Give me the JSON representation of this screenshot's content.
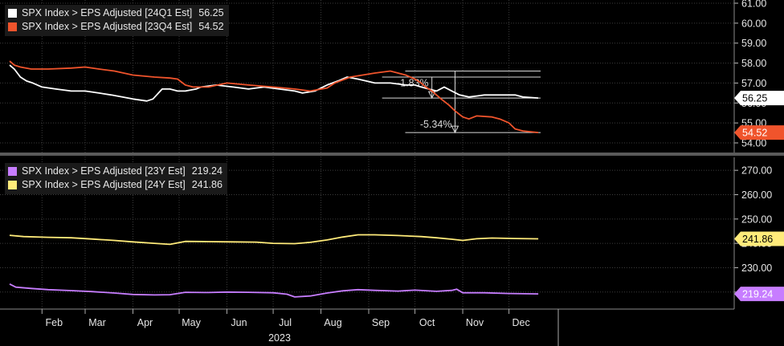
{
  "chart_data": [
    {
      "type": "line",
      "legend_position": "top-left",
      "ylim": [
        54.0,
        61.0
      ],
      "y_ticks": [
        "61.00",
        "60.00",
        "59.00",
        "58.00",
        "57.00",
        "56.00",
        "55.00",
        "54.00"
      ],
      "series": [
        {
          "name": "SPX Index > EPS Adjusted [24Q1 Est]",
          "last_label": "56.25",
          "color": "#ffffff",
          "x": [
            "2023-01-11",
            "2023-01-14",
            "2023-01-18",
            "2023-01-22",
            "2023-01-26",
            "2023-02-01",
            "2023-02-10",
            "2023-02-20",
            "2023-03-01",
            "2023-03-10",
            "2023-03-18",
            "2023-03-25",
            "2023-04-01",
            "2023-04-10",
            "2023-04-14",
            "2023-04-20",
            "2023-04-25",
            "2023-04-30",
            "2023-05-05",
            "2023-05-12",
            "2023-05-15",
            "2023-05-25",
            "2023-06-05",
            "2023-06-15",
            "2023-06-25",
            "2023-07-05",
            "2023-07-15",
            "2023-07-20",
            "2023-07-28",
            "2023-08-05",
            "2023-08-12",
            "2023-08-18",
            "2023-08-25",
            "2023-09-05",
            "2023-09-15",
            "2023-09-25",
            "2023-10-01",
            "2023-10-05",
            "2023-10-10",
            "2023-10-15",
            "2023-10-20",
            "2023-10-25",
            "2023-10-30",
            "2023-11-05",
            "2023-11-10",
            "2023-11-15",
            "2023-11-25",
            "2023-12-05",
            "2023-12-10",
            "2023-12-20"
          ],
          "values": [
            57.9,
            57.7,
            57.3,
            57.1,
            57.0,
            56.8,
            56.7,
            56.6,
            56.6,
            56.5,
            56.4,
            56.3,
            56.2,
            56.1,
            56.2,
            56.7,
            56.7,
            56.6,
            56.6,
            56.7,
            56.8,
            56.9,
            56.8,
            56.7,
            56.8,
            56.7,
            56.6,
            56.5,
            56.6,
            56.9,
            57.1,
            57.3,
            57.2,
            57.0,
            57.0,
            56.9,
            56.9,
            56.8,
            56.7,
            56.6,
            56.8,
            56.6,
            56.4,
            56.3,
            56.35,
            56.4,
            56.4,
            56.4,
            56.3,
            56.25
          ]
        },
        {
          "name": "SPX Index > EPS Adjusted [23Q4 Est]",
          "last_label": "54.52",
          "color": "#f0542c",
          "x": [
            "2023-01-11",
            "2023-01-14",
            "2023-01-18",
            "2023-01-25",
            "2023-02-05",
            "2023-02-20",
            "2023-03-01",
            "2023-03-10",
            "2023-03-20",
            "2023-04-01",
            "2023-04-15",
            "2023-04-25",
            "2023-04-30",
            "2023-05-05",
            "2023-05-10",
            "2023-05-20",
            "2023-06-01",
            "2023-06-15",
            "2023-07-01",
            "2023-07-15",
            "2023-07-25",
            "2023-08-05",
            "2023-08-10",
            "2023-08-20",
            "2023-09-05",
            "2023-09-15",
            "2023-09-25",
            "2023-10-01",
            "2023-10-05",
            "2023-10-08",
            "2023-10-12",
            "2023-10-18",
            "2023-10-23",
            "2023-10-27",
            "2023-11-01",
            "2023-11-05",
            "2023-11-10",
            "2023-11-20",
            "2023-11-25",
            "2023-12-01",
            "2023-12-05",
            "2023-12-10",
            "2023-12-20"
          ],
          "values": [
            58.1,
            57.9,
            57.8,
            57.7,
            57.7,
            57.75,
            57.8,
            57.7,
            57.6,
            57.4,
            57.3,
            57.25,
            57.2,
            56.9,
            56.8,
            56.8,
            57.0,
            56.9,
            56.8,
            56.7,
            56.6,
            56.75,
            57.0,
            57.3,
            57.5,
            57.6,
            57.4,
            57.2,
            57.0,
            56.8,
            56.6,
            56.2,
            55.9,
            55.6,
            55.3,
            55.2,
            55.35,
            55.3,
            55.2,
            55.0,
            54.7,
            54.6,
            54.52
          ]
        }
      ],
      "annotations": [
        {
          "text": "-1.83%",
          "x": "2023-10-12",
          "y": 56.6,
          "from": 57.3,
          "to": 56.25
        },
        {
          "text": "-5.34%",
          "x": "2023-10-27",
          "y": 54.52,
          "from": 57.6,
          "to": 54.52
        }
      ]
    },
    {
      "type": "line",
      "legend_position": "top-left",
      "ylim": [
        214.0,
        275.0
      ],
      "y_ticks": [
        "270.00",
        "260.00",
        "250.00",
        "240.00",
        "230.00",
        "220.00"
      ],
      "series": [
        {
          "name": "SPX Index > EPS Adjusted [23Y Est]",
          "last_label": "219.24",
          "color": "#c77dff",
          "x": [
            "2023-01-11",
            "2023-01-15",
            "2023-01-25",
            "2023-02-05",
            "2023-02-20",
            "2023-03-05",
            "2023-03-20",
            "2023-04-01",
            "2023-04-15",
            "2023-04-25",
            "2023-05-05",
            "2023-05-20",
            "2023-06-01",
            "2023-06-15",
            "2023-07-01",
            "2023-07-10",
            "2023-07-15",
            "2023-07-25",
            "2023-08-05",
            "2023-08-15",
            "2023-08-25",
            "2023-09-05",
            "2023-09-20",
            "2023-10-01",
            "2023-10-15",
            "2023-10-25",
            "2023-10-28",
            "2023-11-01",
            "2023-11-15",
            "2023-12-01",
            "2023-12-20"
          ],
          "values": [
            223.3,
            222.0,
            221.5,
            221.0,
            220.6,
            220.2,
            219.6,
            219.0,
            218.8,
            218.9,
            219.9,
            219.8,
            220.0,
            219.9,
            219.7,
            219.1,
            218.0,
            218.4,
            219.6,
            220.5,
            221.0,
            220.7,
            220.4,
            220.8,
            220.3,
            220.7,
            221.2,
            219.7,
            219.7,
            219.4,
            219.24
          ]
        },
        {
          "name": "SPX Index > EPS Adjusted [24Y Est]",
          "last_label": "241.86",
          "color": "#ffeb7a",
          "x": [
            "2023-01-11",
            "2023-01-20",
            "2023-02-05",
            "2023-02-20",
            "2023-03-05",
            "2023-03-20",
            "2023-04-01",
            "2023-04-15",
            "2023-04-25",
            "2023-05-05",
            "2023-05-20",
            "2023-06-05",
            "2023-06-20",
            "2023-07-01",
            "2023-07-15",
            "2023-07-25",
            "2023-08-05",
            "2023-08-15",
            "2023-08-25",
            "2023-09-05",
            "2023-09-20",
            "2023-10-05",
            "2023-10-15",
            "2023-10-25",
            "2023-11-01",
            "2023-11-10",
            "2023-11-20",
            "2023-12-05",
            "2023-12-20"
          ],
          "values": [
            243.3,
            242.8,
            242.5,
            242.3,
            241.8,
            241.2,
            240.6,
            240.0,
            239.6,
            240.8,
            240.7,
            240.6,
            240.5,
            240.0,
            239.9,
            240.4,
            241.4,
            242.6,
            243.5,
            243.5,
            243.2,
            242.8,
            242.3,
            241.7,
            241.2,
            241.9,
            242.2,
            242.0,
            241.86
          ]
        }
      ]
    }
  ],
  "x_axis": {
    "months": [
      "Feb",
      "Mar",
      "Apr",
      "May",
      "Jun",
      "Jul",
      "Aug",
      "Sep",
      "Oct",
      "Nov",
      "Dec"
    ],
    "month_dates": [
      "2023-02-01",
      "2023-03-01",
      "2023-04-01",
      "2023-05-01",
      "2023-06-01",
      "2023-07-01",
      "2023-08-01",
      "2023-09-01",
      "2023-10-01",
      "2023-11-01",
      "2023-12-01"
    ],
    "year_label": "2023",
    "range": [
      "2023-01-11",
      "2024-01-02"
    ]
  },
  "colors": {
    "background": "#000000",
    "grid": "#3c3c3c",
    "axis_text": "#e6e6e6",
    "annotation": "#d9d9d9"
  }
}
